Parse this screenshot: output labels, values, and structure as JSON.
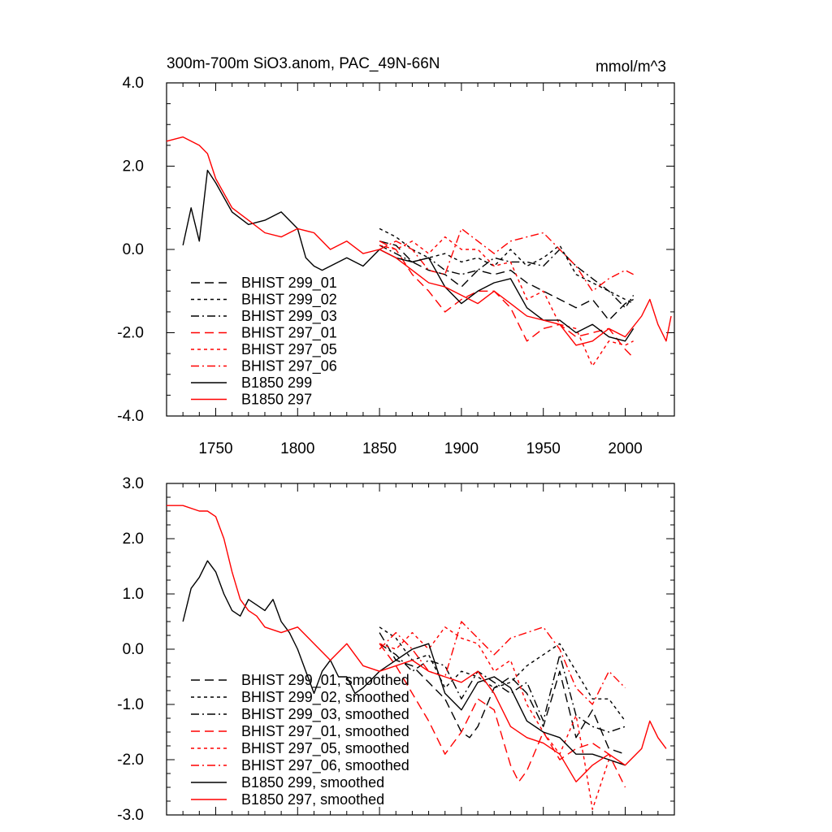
{
  "chart_data": [
    {
      "type": "line",
      "title": "300m-700m SiO3.anom, PAC_49N-66N",
      "units": "mmol/m^3",
      "xlim": [
        1720,
        2030
      ],
      "ylim": [
        -4.0,
        4.0
      ],
      "xticks": [
        1750,
        1800,
        1850,
        1900,
        1950,
        2000
      ],
      "xtick_labels": [
        "1750",
        "1800",
        "1850",
        "1900",
        "1950",
        "2000"
      ],
      "yticks": [
        -4,
        -2,
        0,
        2,
        4
      ],
      "ytick_labels": [
        "-4.0",
        "-2.0",
        "0.0",
        "2.0",
        "4.0"
      ],
      "legend_position": "lower-left",
      "series": [
        {
          "name": "BHIST 299_01",
          "color": "#000000",
          "dash": "long-dash",
          "x": [
            1850,
            1860,
            1870,
            1880,
            1890,
            1900,
            1910,
            1920,
            1930,
            1940,
            1950,
            1960,
            1970,
            1980,
            1990,
            2000,
            2005
          ],
          "y": [
            0.2,
            0.1,
            -0.3,
            -0.5,
            -0.6,
            -0.9,
            -0.5,
            -0.6,
            -0.5,
            -0.8,
            -1.0,
            -1.2,
            -1.4,
            -1.2,
            -1.7,
            -1.3,
            -1.2
          ]
        },
        {
          "name": "BHIST 299_02",
          "color": "#000000",
          "dash": "short-dash",
          "x": [
            1850,
            1860,
            1870,
            1880,
            1890,
            1900,
            1910,
            1920,
            1930,
            1940,
            1950,
            1960,
            1970,
            1980,
            1990,
            2000,
            2005
          ],
          "y": [
            0.5,
            0.3,
            0.0,
            -0.2,
            -0.1,
            -0.3,
            -0.2,
            -0.4,
            0.0,
            -0.4,
            -0.2,
            0.1,
            -0.6,
            -0.8,
            -1.0,
            -1.2,
            -1.3
          ]
        },
        {
          "name": "BHIST 299_03",
          "color": "#000000",
          "dash": "dash-dot",
          "x": [
            1850,
            1860,
            1870,
            1880,
            1890,
            1900,
            1910,
            1920,
            1930,
            1940,
            1950,
            1960,
            1970,
            1980,
            1990,
            2000,
            2005
          ],
          "y": [
            0.1,
            -0.1,
            -0.3,
            -0.2,
            -0.5,
            -0.6,
            -0.5,
            -0.2,
            -0.3,
            -0.3,
            -0.4,
            0.0,
            -0.4,
            -0.7,
            -1.0,
            -1.4,
            -1.1
          ]
        },
        {
          "name": "BHIST 297_01",
          "color": "#ff0000",
          "dash": "long-dash",
          "x": [
            1850,
            1860,
            1870,
            1880,
            1890,
            1900,
            1910,
            1920,
            1930,
            1940,
            1950,
            1960,
            1970,
            1980,
            1990,
            2000,
            2005
          ],
          "y": [
            0.2,
            0.0,
            -0.6,
            -1.0,
            -1.5,
            -1.2,
            -1.0,
            -1.0,
            -1.4,
            -2.2,
            -1.9,
            -1.8,
            -2.1,
            -2.0,
            -1.9,
            -2.4,
            -2.6
          ]
        },
        {
          "name": "BHIST 297_05",
          "color": "#ff0000",
          "dash": "short-dash",
          "x": [
            1850,
            1860,
            1870,
            1880,
            1890,
            1900,
            1910,
            1920,
            1930,
            1940,
            1950,
            1960,
            1970,
            1980,
            1990,
            2000,
            2005
          ],
          "y": [
            0.1,
            0.0,
            0.2,
            -0.1,
            0.3,
            0.0,
            0.0,
            -0.4,
            -0.3,
            -1.2,
            -1.0,
            -1.8,
            -1.9,
            -2.8,
            -2.2,
            -2.3,
            -2.2
          ]
        },
        {
          "name": "BHIST 297_06",
          "color": "#ff0000",
          "dash": "dash-dot",
          "x": [
            1850,
            1860,
            1870,
            1880,
            1890,
            1900,
            1910,
            1920,
            1930,
            1940,
            1950,
            1960,
            1970,
            1980,
            1990,
            2000,
            2005
          ],
          "y": [
            0.0,
            0.2,
            0.0,
            -0.5,
            -0.6,
            0.5,
            0.2,
            -0.1,
            0.2,
            0.3,
            0.4,
            0.0,
            -0.4,
            -1.0,
            -0.7,
            -0.5,
            -0.6
          ]
        },
        {
          "name": "B1850 299",
          "color": "#000000",
          "dash": "solid",
          "x": [
            1730,
            1735,
            1740,
            1745,
            1750,
            1760,
            1770,
            1780,
            1790,
            1800,
            1805,
            1810,
            1815,
            1820,
            1830,
            1840,
            1850,
            1860,
            1870,
            1880,
            1890,
            1900,
            1910,
            1920,
            1930,
            1940,
            1950,
            1960,
            1970,
            1980,
            1990,
            2000,
            2005
          ],
          "y": [
            0.1,
            1.0,
            0.2,
            1.9,
            1.6,
            0.9,
            0.6,
            0.7,
            0.9,
            0.5,
            -0.2,
            -0.4,
            -0.5,
            -0.4,
            -0.2,
            -0.4,
            0.0,
            -0.2,
            -0.3,
            -0.2,
            -0.9,
            -1.3,
            -1.0,
            -0.8,
            -0.7,
            -1.4,
            -1.7,
            -1.7,
            -2.0,
            -1.8,
            -2.1,
            -2.2,
            -1.9
          ]
        },
        {
          "name": "B1850 297",
          "color": "#ff0000",
          "dash": "solid",
          "x": [
            1720,
            1730,
            1740,
            1745,
            1750,
            1760,
            1770,
            1780,
            1790,
            1800,
            1810,
            1820,
            1830,
            1840,
            1850,
            1860,
            1870,
            1880,
            1890,
            1900,
            1910,
            1920,
            1930,
            1940,
            1950,
            1960,
            1970,
            1980,
            1990,
            2000,
            2010,
            2015,
            2020,
            2025,
            2028
          ],
          "y": [
            2.6,
            2.7,
            2.5,
            2.3,
            1.7,
            1.0,
            0.7,
            0.4,
            0.3,
            0.5,
            0.4,
            0.0,
            0.2,
            -0.1,
            0.0,
            -0.2,
            -0.5,
            -0.8,
            -0.9,
            -1.1,
            -1.3,
            -1.0,
            -1.3,
            -1.6,
            -1.7,
            -1.8,
            -2.3,
            -2.2,
            -1.9,
            -2.1,
            -1.6,
            -1.2,
            -1.8,
            -2.2,
            -1.6
          ]
        }
      ]
    },
    {
      "type": "line",
      "title": "",
      "xlim": [
        1720,
        2030
      ],
      "ylim": [
        -3.0,
        3.0
      ],
      "xticks": [
        1750,
        1800,
        1850,
        1900,
        1950,
        2000
      ],
      "yticks": [
        -3,
        -2,
        -1,
        0,
        1,
        2,
        3
      ],
      "ytick_labels": [
        "-3.0",
        "-2.0",
        "-1.0",
        "0.0",
        "1.0",
        "2.0",
        "3.0"
      ],
      "legend_position": "lower-left",
      "series": [
        {
          "name": "BHIST 299_01, smoothed",
          "color": "#000000",
          "dash": "long-dash",
          "x": [
            1850,
            1860,
            1870,
            1880,
            1890,
            1900,
            1905,
            1910,
            1920,
            1930,
            1940,
            1950,
            1960,
            1970,
            1980,
            1990,
            2000
          ],
          "y": [
            0.3,
            -0.2,
            -0.3,
            -0.6,
            -0.9,
            -1.5,
            -1.6,
            -1.4,
            -0.7,
            -0.5,
            -0.8,
            -1.4,
            -0.4,
            -1.6,
            -1.1,
            -1.8,
            -1.9
          ]
        },
        {
          "name": "BHIST 299_02, smoothed",
          "color": "#000000",
          "dash": "short-dash",
          "x": [
            1850,
            1860,
            1870,
            1880,
            1890,
            1900,
            1910,
            1920,
            1930,
            1940,
            1950,
            1960,
            1970,
            1980,
            1990,
            2000
          ],
          "y": [
            0.4,
            0.2,
            -0.2,
            -0.1,
            -0.7,
            -0.4,
            -0.5,
            -0.7,
            -0.6,
            -0.3,
            -0.1,
            0.1,
            -0.4,
            -0.9,
            -0.9,
            -1.3
          ]
        },
        {
          "name": "BHIST 299_03, smoothed",
          "color": "#000000",
          "dash": "dash-dot",
          "x": [
            1850,
            1860,
            1870,
            1880,
            1890,
            1900,
            1910,
            1920,
            1930,
            1940,
            1950,
            1960,
            1970,
            1980,
            1990,
            2000
          ],
          "y": [
            0.1,
            -0.1,
            -0.4,
            -0.2,
            -0.3,
            -0.9,
            -0.4,
            -0.6,
            -0.8,
            -0.6,
            -1.3,
            -0.1,
            -1.2,
            -1.4,
            -1.5,
            -1.4
          ]
        },
        {
          "name": "BHIST 297_01, smoothed",
          "color": "#ff0000",
          "dash": "long-dash",
          "x": [
            1850,
            1860,
            1870,
            1880,
            1890,
            1900,
            1910,
            1920,
            1930,
            1935,
            1940,
            1950,
            1960,
            1970,
            1980,
            1990,
            2000
          ],
          "y": [
            0.1,
            -0.3,
            -0.8,
            -1.3,
            -1.9,
            -1.5,
            -0.9,
            -1.1,
            -2.1,
            -2.4,
            -2.2,
            -1.5,
            -2.0,
            -1.8,
            -1.7,
            -1.9,
            -2.5
          ]
        },
        {
          "name": "BHIST 297_05, smoothed",
          "color": "#ff0000",
          "dash": "short-dash",
          "x": [
            1850,
            1860,
            1870,
            1880,
            1890,
            1900,
            1910,
            1920,
            1930,
            1940,
            1950,
            1960,
            1970,
            1975,
            1980,
            1990,
            2000
          ],
          "y": [
            0.1,
            0.0,
            0.3,
            0.0,
            0.4,
            0.2,
            0.1,
            -0.4,
            -0.2,
            -1.0,
            -1.5,
            -1.9,
            -1.2,
            -2.0,
            -2.9,
            -2.0,
            -2.1
          ]
        },
        {
          "name": "BHIST 297_06, smoothed",
          "color": "#ff0000",
          "dash": "dash-dot",
          "x": [
            1850,
            1860,
            1870,
            1880,
            1890,
            1900,
            1910,
            1920,
            1930,
            1940,
            1950,
            1960,
            1970,
            1980,
            1990,
            2000
          ],
          "y": [
            0.0,
            0.3,
            0.0,
            -0.4,
            -0.5,
            0.5,
            0.2,
            -0.1,
            0.2,
            0.3,
            0.4,
            0.0,
            -0.7,
            -1.0,
            -0.4,
            -0.7
          ]
        },
        {
          "name": "B1850 299, smoothed",
          "color": "#000000",
          "dash": "solid",
          "x": [
            1730,
            1735,
            1740,
            1745,
            1750,
            1755,
            1760,
            1765,
            1770,
            1775,
            1780,
            1785,
            1790,
            1795,
            1800,
            1805,
            1810,
            1815,
            1820,
            1825,
            1830,
            1835,
            1840,
            1850,
            1860,
            1870,
            1880,
            1890,
            1900,
            1910,
            1920,
            1930,
            1940,
            1950,
            1960,
            1970,
            1980,
            1990,
            2000
          ],
          "y": [
            0.5,
            1.1,
            1.3,
            1.6,
            1.4,
            1.0,
            0.7,
            0.6,
            0.9,
            0.8,
            0.7,
            0.9,
            0.5,
            0.3,
            0.0,
            -0.4,
            -0.8,
            -0.4,
            -0.2,
            -0.5,
            -0.5,
            -0.8,
            -0.7,
            -0.4,
            -0.2,
            0.0,
            0.1,
            -0.8,
            -1.1,
            -0.6,
            -0.5,
            -0.7,
            -1.3,
            -1.5,
            -1.6,
            -1.9,
            -1.9,
            -2.0,
            -2.1
          ]
        },
        {
          "name": "B1850 297, smoothed",
          "color": "#ff0000",
          "dash": "solid",
          "x": [
            1720,
            1730,
            1740,
            1745,
            1750,
            1755,
            1760,
            1765,
            1770,
            1775,
            1780,
            1790,
            1800,
            1810,
            1820,
            1830,
            1840,
            1850,
            1860,
            1870,
            1880,
            1890,
            1900,
            1910,
            1920,
            1930,
            1940,
            1950,
            1960,
            1970,
            1980,
            1990,
            2000,
            2010,
            2015,
            2020,
            2025
          ],
          "y": [
            2.6,
            2.6,
            2.5,
            2.5,
            2.4,
            2.0,
            1.4,
            0.9,
            0.7,
            0.6,
            0.4,
            0.3,
            0.4,
            0.1,
            -0.2,
            0.1,
            -0.3,
            -0.4,
            -0.3,
            -0.2,
            -0.4,
            -0.5,
            -0.6,
            -0.4,
            -0.8,
            -1.4,
            -1.6,
            -1.7,
            -1.9,
            -2.4,
            -2.1,
            -1.9,
            -2.1,
            -1.8,
            -1.3,
            -1.6,
            -1.8
          ]
        }
      ]
    }
  ]
}
